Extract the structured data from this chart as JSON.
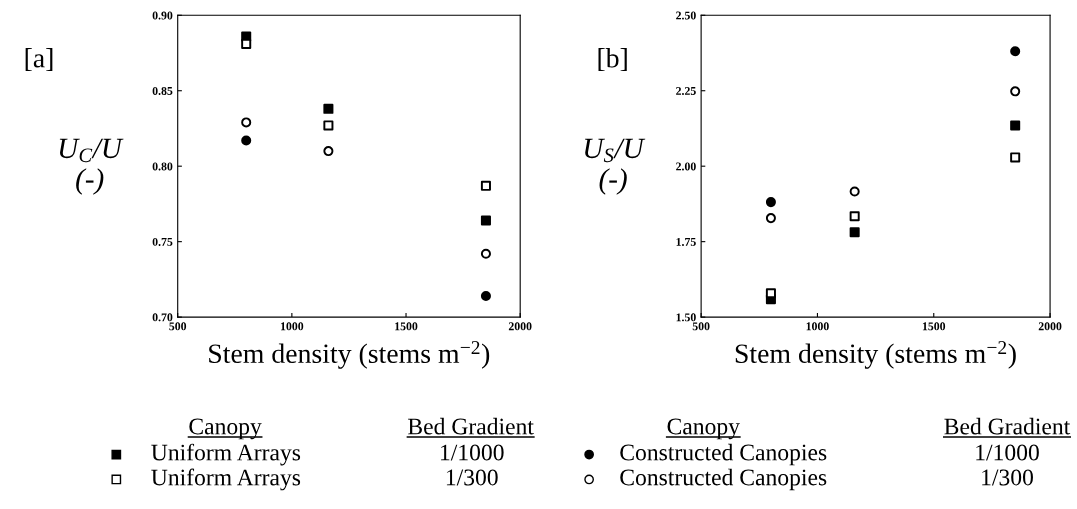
{
  "chart_data": [
    {
      "type": "scatter",
      "title": "[a]",
      "xlabel": "Stem density (stems m$^{−2}$)",
      "ylabel": "U$_{C}$/U\n(-)",
      "x": [
        800,
        1160,
        1850
      ],
      "xlim": [
        500,
        2000
      ],
      "xticks": [
        500,
        1000,
        1500,
        2000
      ],
      "ylim": [
        0.7,
        0.9
      ],
      "yticks": [
        {
          "value": 0.7,
          "label": "0.70"
        },
        0.75,
        {
          "value": 0.8,
          "label": "0.80"
        },
        0.85,
        {
          "value": 0.9,
          "label": "0.90"
        }
      ],
      "grid": false,
      "legend": "bottom",
      "annotations": [
        "Canopy",
        "Bed Gradient",
        "1/1000",
        "1/300"
      ],
      "series": [
        {
          "name": "Uniform Arrays",
          "color": "#000000",
          "marker": "square",
          "values": [
            0.886,
            0.838,
            0.764
          ]
        },
        {
          "name": "Uniform Arrays",
          "color": "#ffffff",
          "marker": "square",
          "values": [
            0.881,
            0.827,
            0.787
          ]
        },
        {
          "color": "#000000",
          "marker": "circle",
          "values": [
            0.817,
            null,
            0.714
          ]
        },
        {
          "color": "#ffffff",
          "marker": "circle",
          "values": [
            0.829,
            0.81,
            0.742
          ]
        }
      ]
    },
    {
      "type": "scatter",
      "title": "[b]",
      "xlabel": "Stem density (stems m$^{−2}$)",
      "ylabel": "U$_{S}$/U\n(-)",
      "x": [
        800,
        1160,
        1850
      ],
      "xlim": [
        500,
        2000
      ],
      "xticks": [
        500,
        1000,
        1500,
        2000
      ],
      "ylim": [
        1.5,
        2.5
      ],
      "yticks": [
        {
          "value": 1.5,
          "label": "1.50"
        },
        1.75,
        {
          "value": 2.0,
          "label": "2.00"
        },
        2.25,
        {
          "value": 2.5,
          "label": "2.50"
        }
      ],
      "grid": false,
      "legend": "bottom",
      "annotations": [
        "Canopy",
        "Bed Gradient",
        "1/1000",
        "1/300"
      ],
      "series": [
        {
          "color": "#000000",
          "marker": "square",
          "values": [
            1.559,
            1.781,
            2.135
          ]
        },
        {
          "color": "#ffffff",
          "marker": "square",
          "values": [
            1.579,
            1.834,
            2.029
          ]
        },
        {
          "name": "Constructed Canopies",
          "color": "#000000",
          "marker": "circle",
          "values": [
            1.881,
            null,
            2.381
          ]
        },
        {
          "name": "Constructed Canopies",
          "color": "#ffffff",
          "marker": "circle",
          "values": [
            1.828,
            1.916,
            2.248
          ]
        }
      ]
    }
  ]
}
